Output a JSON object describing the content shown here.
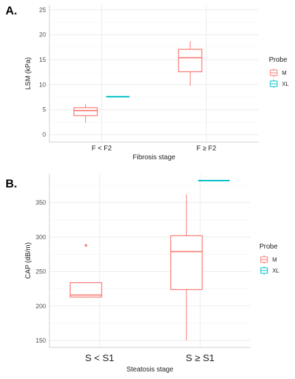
{
  "chart_data": [
    {
      "panel_label": "A.",
      "type": "boxplot",
      "xlabel": "Fibrosis stage",
      "ylabel": "LSM (kPa)",
      "ylim": [
        -1.5,
        26
      ],
      "yticks": [
        0,
        5,
        10,
        15,
        20,
        25
      ],
      "categories": [
        "F < F2",
        "F ≥ F2"
      ],
      "grid": true,
      "legend": {
        "title": "Probe",
        "position": "right",
        "entries": [
          "M",
          "XL"
        ]
      },
      "colors": {
        "M": "#f8766d",
        "XL": "#00bfc4"
      },
      "series": [
        {
          "name": "M",
          "boxes": [
            {
              "category": "F < F2",
              "min": 2.4,
              "q1": 3.8,
              "median": 4.8,
              "q3": 5.4,
              "max": 6.1,
              "outliers": []
            },
            {
              "category": "F ≥ F2",
              "min": 9.8,
              "q1": 12.6,
              "median": 15.4,
              "q3": 17.1,
              "max": 18.7,
              "outliers": []
            }
          ]
        },
        {
          "name": "XL",
          "boxes": [
            {
              "category": "F < F2",
              "min": 7.6,
              "q1": 7.6,
              "median": 7.6,
              "q3": 7.6,
              "max": 7.6,
              "outliers": []
            }
          ]
        }
      ]
    },
    {
      "panel_label": "B.",
      "type": "boxplot",
      "xlabel": "Steatosis stage",
      "ylabel": "CAP (dB/m)",
      "ylim": [
        140,
        392
      ],
      "yticks": [
        150,
        200,
        250,
        300,
        350
      ],
      "categories": [
        "S < S1",
        "S ≥ S1"
      ],
      "grid": true,
      "legend": {
        "title": "Probe",
        "position": "right",
        "entries": [
          "M",
          "XL"
        ]
      },
      "colors": {
        "M": "#f8766d",
        "XL": "#00bfc4"
      },
      "series": [
        {
          "name": "M",
          "boxes": [
            {
              "category": "S < S1",
              "min": 212,
              "q1": 213,
              "median": 216,
              "q3": 234,
              "max": 234,
              "outliers": [
                288
              ]
            },
            {
              "category": "S ≥ S1",
              "min": 150,
              "q1": 224,
              "median": 279,
              "q3": 302,
              "max": 362,
              "outliers": []
            }
          ]
        },
        {
          "name": "XL",
          "boxes": [
            {
              "category": "S ≥ S1",
              "min": 382,
              "q1": 382,
              "median": 382,
              "q3": 382,
              "max": 382,
              "outliers": []
            }
          ]
        }
      ]
    }
  ]
}
